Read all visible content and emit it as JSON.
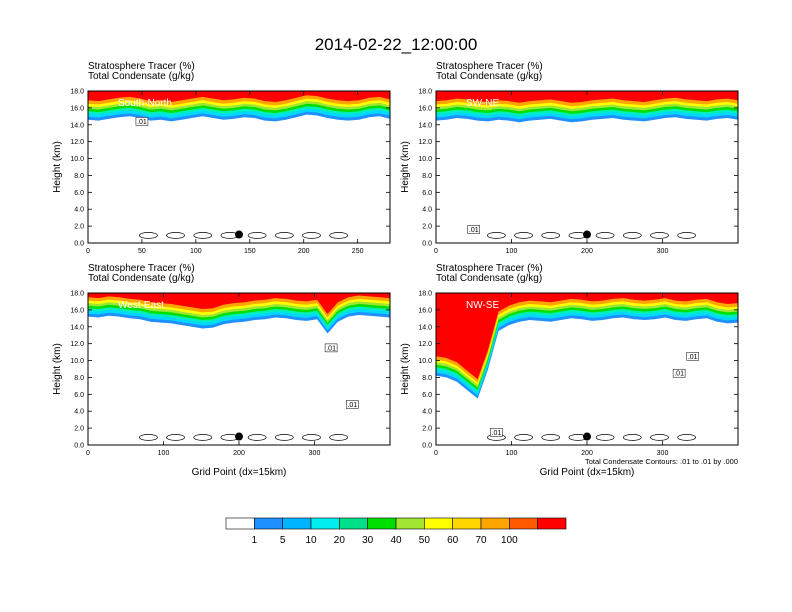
{
  "title": "2014-02-22_12:00:00",
  "chart_data": [
    {
      "type": "heatmap",
      "label": "South-North",
      "subtitle_lines": [
        "Stratosphere Tracer   (%)",
        "Total Condensate   (g/kg)"
      ],
      "ylabel": "Height (km)",
      "xlabel": "",
      "xlim": [
        0,
        280
      ],
      "xticks": [
        0,
        50,
        100,
        150,
        200,
        250
      ],
      "ylim": [
        0,
        18
      ],
      "yticks": [
        "0.0",
        "2.0",
        "4.0",
        "6.0",
        "8.0",
        "10.0",
        "12.0",
        "14.0",
        "16.0",
        "18.0"
      ],
      "tracer_base_km": [
        14.6,
        14.5,
        14.7,
        14.9,
        15.0,
        14.8,
        14.5,
        14.6,
        14.4,
        14.6,
        14.8,
        15.0,
        14.8,
        14.6,
        14.7,
        14.9,
        14.8,
        14.5,
        14.4,
        14.6,
        14.9,
        15.2,
        15.1,
        14.8,
        14.6,
        14.5,
        14.6,
        14.9,
        15.0,
        14.7
      ],
      "condensate_contour_labels": [
        {
          "text": ".01",
          "x": 50,
          "y": 14.4
        }
      ],
      "marker": {
        "x": 140,
        "y": 1.0
      }
    },
    {
      "type": "heatmap",
      "label": "SW-NE",
      "subtitle_lines": [
        "Stratosphere Tracer   (%)",
        "Total Condensate   (g/kg)"
      ],
      "ylabel": "Height (km)",
      "xlabel": "",
      "xlim": [
        0,
        400
      ],
      "xticks": [
        0,
        100,
        200,
        300
      ],
      "ylim": [
        0,
        18
      ],
      "yticks": [
        "0.0",
        "2.0",
        "4.0",
        "6.0",
        "8.0",
        "10.0",
        "12.0",
        "14.0",
        "16.0",
        "18.0"
      ],
      "tracer_base_km": [
        14.5,
        14.6,
        14.8,
        14.7,
        14.5,
        14.4,
        14.6,
        14.5,
        14.3,
        14.5,
        14.6,
        14.7,
        14.5,
        14.3,
        14.4,
        14.6,
        14.7,
        14.8,
        14.6,
        14.5,
        14.4,
        14.6,
        14.8,
        14.9,
        14.7,
        14.6,
        14.5,
        14.7,
        14.8,
        14.6
      ],
      "condensate_contour_labels": [
        {
          "text": ".01",
          "x": 50,
          "y": 1.6
        }
      ],
      "marker": {
        "x": 200,
        "y": 1.0
      }
    },
    {
      "type": "heatmap",
      "label": "West-East",
      "subtitle_lines": [
        "Stratosphere Tracer   (%)",
        "Total Condensate   (g/kg)"
      ],
      "ylabel": "Height (km)",
      "xlabel": "Grid Point (dx=15km)",
      "xlim": [
        0,
        400
      ],
      "xticks": [
        0,
        100,
        200,
        300
      ],
      "ylim": [
        0,
        18
      ],
      "yticks": [
        "0.0",
        "2.0",
        "4.0",
        "6.0",
        "8.0",
        "10.0",
        "12.0",
        "14.0",
        "16.0",
        "18.0"
      ],
      "tracer_base_km": [
        15.2,
        15.1,
        15.3,
        15.2,
        15.0,
        14.9,
        14.6,
        14.5,
        14.4,
        14.2,
        14.0,
        13.8,
        13.9,
        14.3,
        14.5,
        14.6,
        14.8,
        14.9,
        15.1,
        15.0,
        14.8,
        14.7,
        14.9,
        13.2,
        14.6,
        15.2,
        15.4,
        15.3,
        15.2,
        15.1
      ],
      "condensate_contour_labels": [
        {
          "text": ".01",
          "x": 322,
          "y": 11.5
        },
        {
          "text": ".01",
          "x": 350,
          "y": 4.8
        }
      ],
      "marker": {
        "x": 200,
        "y": 1.0
      }
    },
    {
      "type": "heatmap",
      "label": "NW-SE",
      "subtitle_lines": [
        "Stratosphere Tracer   (%)",
        "Total Condensate   (g/kg)"
      ],
      "ylabel": "Height (km)",
      "xlabel": "Grid Point (dx=15km)",
      "xlim": [
        0,
        400
      ],
      "xticks": [
        0,
        100,
        200,
        300
      ],
      "ylim": [
        0,
        18
      ],
      "yticks": [
        "0.0",
        "2.0",
        "4.0",
        "6.0",
        "8.0",
        "10.0",
        "12.0",
        "14.0",
        "16.0",
        "18.0"
      ],
      "tracer_base_km": [
        8.2,
        8.0,
        7.5,
        6.5,
        5.5,
        9.0,
        13.5,
        14.2,
        14.6,
        14.8,
        14.7,
        14.6,
        14.8,
        15.0,
        14.9,
        14.7,
        14.8,
        15.0,
        15.1,
        14.9,
        14.8,
        14.9,
        15.1,
        14.8,
        14.7,
        14.9,
        15.0,
        14.6,
        14.4,
        14.5
      ],
      "condensate_contour_labels": [
        {
          "text": ".01",
          "x": 340,
          "y": 10.5
        },
        {
          "text": ".01",
          "x": 322,
          "y": 8.5
        },
        {
          "text": ".01",
          "x": 80,
          "y": 1.5
        }
      ],
      "marker": {
        "x": 200,
        "y": 1.0
      },
      "footnote": "Total Condensate Contours: .01 to .01 by .000"
    }
  ],
  "colorbar": {
    "levels": [
      "1",
      "5",
      "10",
      "20",
      "30",
      "40",
      "50",
      "60",
      "70",
      "100"
    ],
    "colors": [
      "#ffffff",
      "#1e90ff",
      "#00b4ff",
      "#00eeee",
      "#00e08a",
      "#00e000",
      "#a0e632",
      "#ffff00",
      "#ffd700",
      "#ffa500",
      "#ff5a00",
      "#ff0000"
    ]
  }
}
